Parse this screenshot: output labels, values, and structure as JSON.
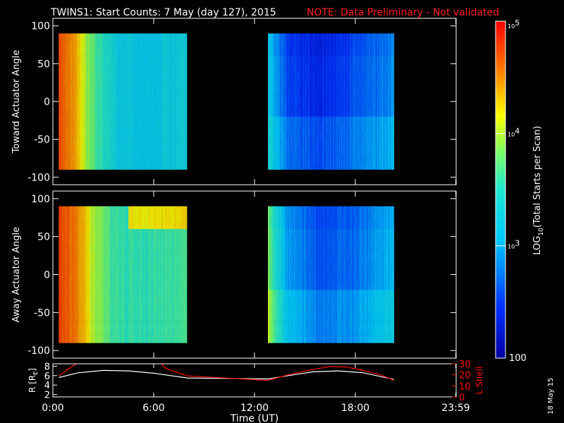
{
  "title": {
    "main": "TWINS1: Start Counts:  7 May (day 127), 2015",
    "note": "NOTE: Data Preliminary - Not validated",
    "note_color": "#ff2020"
  },
  "side_stamp": "18 May 15",
  "chart_data": [
    {
      "type": "heatmap",
      "ylabel": "Toward Actuator Angle",
      "ylim": [
        -110,
        110
      ],
      "yticks": [
        "100",
        "50",
        "0",
        "-50",
        "-100"
      ],
      "ytick_values": [
        100,
        50,
        0,
        -50,
        -100
      ],
      "xlim_hours": [
        0,
        24
      ],
      "segments": [
        {
          "x_hours": [
            0.35,
            8.0
          ],
          "y_range": [
            -90,
            90
          ],
          "columns": [
            {
              "t": 0.35,
              "log_counts": 4.7
            },
            {
              "t": 0.9,
              "log_counts": 4.55
            },
            {
              "t": 1.5,
              "log_counts": 4.35
            },
            {
              "t": 2.0,
              "log_counts": 3.9
            },
            {
              "t": 3.0,
              "log_counts": 3.5
            },
            {
              "t": 4.0,
              "log_counts": 3.25
            },
            {
              "t": 5.5,
              "log_counts": 3.15
            },
            {
              "t": 7.0,
              "log_counts": 3.25
            },
            {
              "t": 8.0,
              "log_counts": 3.3
            }
          ]
        },
        {
          "x_hours": [
            12.8,
            20.3
          ],
          "y_range": [
            -90,
            90
          ],
          "columns": [
            {
              "t": 12.8,
              "log_counts": 3.2
            },
            {
              "t": 14.0,
              "log_counts": 2.55
            },
            {
              "t": 16.0,
              "log_counts": 2.4
            },
            {
              "t": 18.0,
              "log_counts": 2.6
            },
            {
              "t": 20.3,
              "log_counts": 2.85
            }
          ]
        }
      ]
    },
    {
      "type": "heatmap",
      "ylabel": "Away Actuator Angle",
      "ylim": [
        -110,
        110
      ],
      "yticks": [
        "100",
        "50",
        "0",
        "-50",
        "-100"
      ],
      "ytick_values": [
        100,
        50,
        0,
        -50,
        -100
      ],
      "xlim_hours": [
        0,
        24
      ],
      "segments": [
        {
          "x_hours": [
            0.35,
            8.0
          ],
          "y_range": [
            -90,
            90
          ],
          "columns": [
            {
              "t": 0.35,
              "log_counts": 4.75
            },
            {
              "t": 1.0,
              "log_counts": 4.65
            },
            {
              "t": 1.8,
              "log_counts": 4.4
            },
            {
              "t": 2.5,
              "log_counts": 3.95
            },
            {
              "t": 3.5,
              "log_counts": 3.65
            },
            {
              "t": 5.0,
              "log_counts": 3.55
            },
            {
              "t": 6.5,
              "log_counts": 3.6
            },
            {
              "t": 8.0,
              "log_counts": 3.65
            }
          ]
        },
        {
          "x_hours": [
            12.8,
            20.3
          ],
          "y_range": [
            -90,
            90
          ],
          "columns": [
            {
              "t": 12.8,
              "log_counts": 3.85
            },
            {
              "t": 14.0,
              "log_counts": 2.9
            },
            {
              "t": 16.0,
              "log_counts": 2.6
            },
            {
              "t": 18.0,
              "log_counts": 2.75
            },
            {
              "t": 20.3,
              "log_counts": 3.05
            }
          ]
        }
      ]
    },
    {
      "type": "line",
      "ylabel_left": "R [R",
      "ylabel_left_sub": "E",
      "ylabel_left_close": "]",
      "ylabel_right": "L Shell",
      "ylim_left": [
        1.5,
        8.5
      ],
      "ylim_right": [
        0,
        30
      ],
      "yticks_left": [
        "8",
        "6",
        "4",
        "2"
      ],
      "ytick_values_left": [
        8,
        6,
        4,
        2
      ],
      "yticks_right": [
        "30",
        "20",
        "10",
        "0"
      ],
      "ytick_values_right": [
        30,
        20,
        10,
        0
      ],
      "xlabel": "Time (UT)",
      "xticks": [
        "0:00",
        "6:00",
        "12:00",
        "18:00",
        "23:59"
      ],
      "xtick_values": [
        0,
        6,
        12,
        18,
        23.98
      ],
      "series": [
        {
          "axis": "left",
          "color": "#ffffff",
          "x": [
            0.35,
            1.5,
            3.0,
            4.5,
            6.0,
            7.0,
            8.0,
            12.8,
            14.0,
            15.5,
            17.0,
            18.5,
            20.3
          ],
          "y": [
            5.6,
            6.6,
            7.1,
            7.0,
            6.5,
            6.0,
            5.5,
            5.3,
            6.0,
            6.8,
            7.0,
            6.6,
            5.2
          ]
        },
        {
          "axis": "right",
          "color": "#ff0000",
          "x": [
            0.35,
            1.0,
            1.7,
            6.3,
            6.7,
            8.0,
            12.8,
            14.0,
            15.5,
            16.5,
            17.5,
            18.5,
            19.5,
            20.3
          ],
          "y": [
            19,
            26,
            33,
            33,
            26,
            19,
            15,
            20,
            25,
            27.5,
            27,
            24,
            20,
            15
          ]
        }
      ]
    }
  ],
  "colorbar": {
    "label": "LOG10(Total Starts per Scan)",
    "label_main": "LOG",
    "label_sub": "10",
    "label_rest": "(Total Starts per Scan)",
    "range_log": [
      2,
      5
    ],
    "ticks": [
      {
        "text": "10",
        "exp": "5",
        "log": 5
      },
      {
        "text": "10",
        "exp": "4",
        "log": 4
      },
      {
        "text": "10",
        "exp": "3",
        "log": 3
      },
      {
        "text": "100",
        "exp": "",
        "log": 2
      }
    ]
  }
}
